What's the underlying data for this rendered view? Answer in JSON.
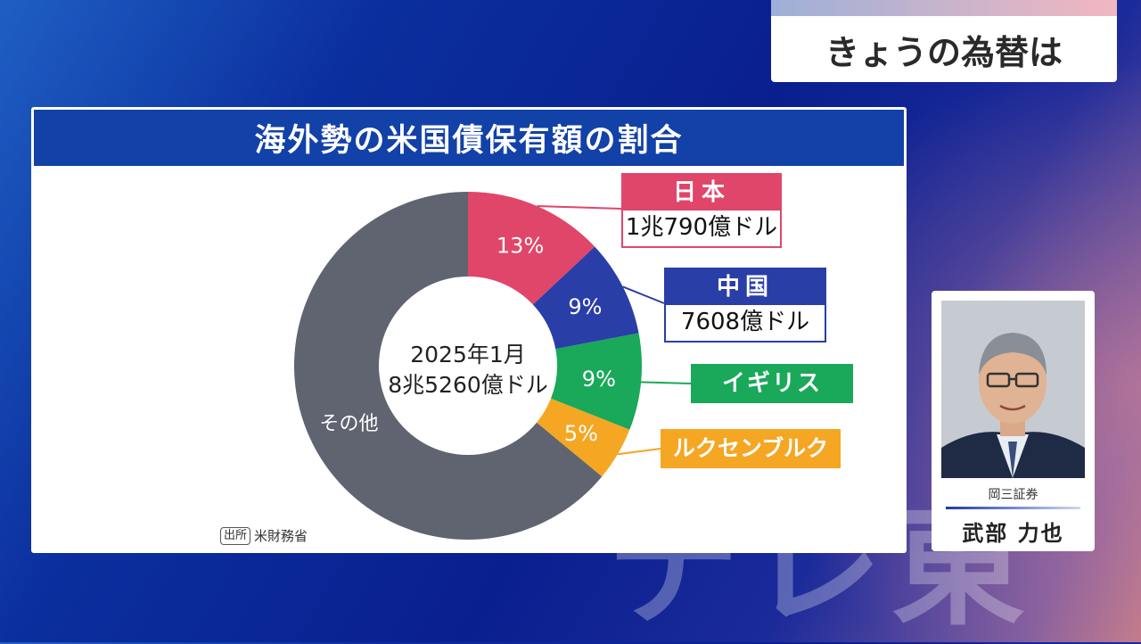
{
  "caption": {
    "text": "きょうの為替は"
  },
  "chart_data": {
    "type": "pie",
    "title": "海外勢の米国債保有額の割合",
    "center_label_line1": "2025年1月",
    "center_label_line2": "8兆5260億ドル",
    "source_tag": "出所",
    "source": "米財務省",
    "slices": [
      {
        "label": "日本",
        "value": 13,
        "pct_label": "13%",
        "amount": "1兆790億ドル",
        "color": "#e0466a"
      },
      {
        "label": "中国",
        "value": 9,
        "pct_label": "9%",
        "amount": "7608億ドル",
        "color": "#2a3ea8"
      },
      {
        "label": "イギリス",
        "value": 9,
        "pct_label": "9%",
        "color": "#1aa85a"
      },
      {
        "label": "ルクセンブルク",
        "value": 5,
        "pct_label": "5%",
        "color": "#f5a623"
      },
      {
        "label": "その他",
        "value": 64,
        "pct_label": "その他",
        "color": "#5f6470"
      }
    ]
  },
  "callouts": {
    "japan_name": "日本",
    "china_name": "中国"
  },
  "presenter": {
    "org": "岡三証券",
    "name": "武部 力也"
  },
  "watermark": {
    "text": "テレ東"
  }
}
